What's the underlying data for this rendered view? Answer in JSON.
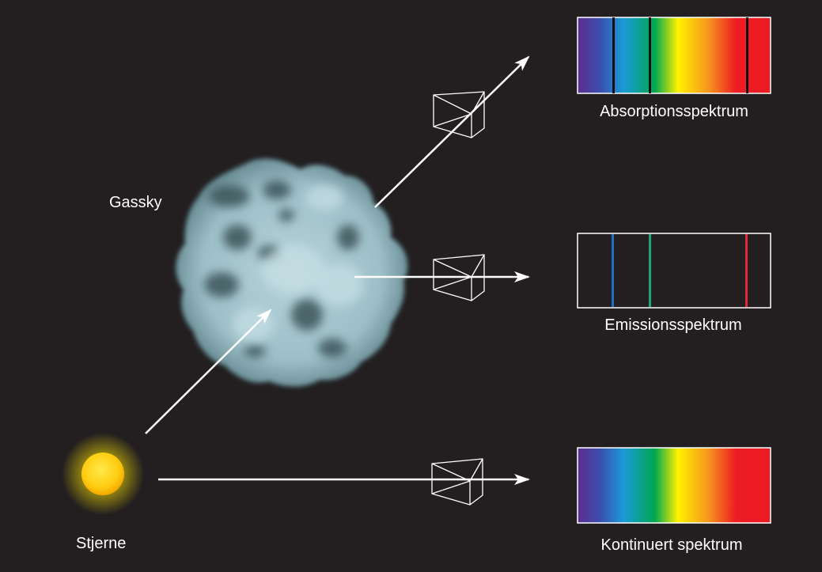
{
  "labels": {
    "gas_cloud": "Gassky",
    "star": "Stjerne",
    "absorption": "Absorptionsspektrum",
    "emission": "Emissionsspektrum",
    "continuous": "Kontinuert spektrum"
  },
  "colors": {
    "background": "#231f20",
    "cloud": "#a9c8d0",
    "star_core": "#ffd21a",
    "star_glow": "#ffe600",
    "arrow": "#ffffff",
    "line_blue": "#1f6fc4",
    "line_green": "#1aa870",
    "line_red": "#e0283a"
  },
  "spectrum_gradient": [
    "#5b2d8e",
    "#3b4fb0",
    "#1a9bd7",
    "#00a651",
    "#fff200",
    "#f7941d",
    "#ed1c24",
    "#ed1c24"
  ],
  "icons": [
    "star-icon",
    "gas-cloud-icon",
    "prism-icon",
    "arrow-icon"
  ]
}
